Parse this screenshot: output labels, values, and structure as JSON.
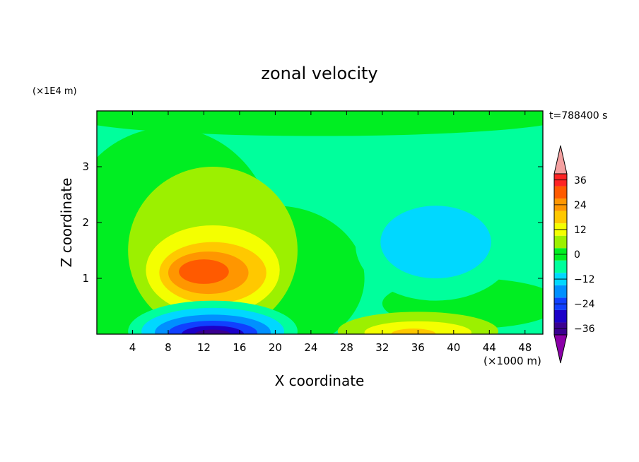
{
  "chart_data": {
    "type": "heatmap",
    "title": "zonal velocity",
    "xlabel": "X coordinate",
    "ylabel": "Z coordinate",
    "x_unit_note": "(×1000 m)",
    "y_unit_note": "(×1E4 m)",
    "time_label": "t=788400 s",
    "xlim": [
      0,
      50
    ],
    "ylim": [
      0,
      4
    ],
    "x_ticks": [
      4,
      8,
      12,
      16,
      20,
      24,
      28,
      32,
      36,
      40,
      44,
      48
    ],
    "y_ticks": [
      1,
      2,
      3
    ],
    "colorbar": {
      "levels": [
        -42,
        -36,
        -30,
        -24,
        -18,
        -12,
        -6,
        0,
        6,
        12,
        18,
        24,
        30,
        36,
        42
      ],
      "tick_labels": [
        "36",
        "24",
        "12",
        "0",
        "-12",
        "-24",
        "-36"
      ],
      "tick_values": [
        36,
        24,
        12,
        0,
        -12,
        -24,
        -36
      ],
      "colors": [
        "#8b00a8",
        "#3a0090",
        "#1c00c8",
        "#1040ff",
        "#0090ff",
        "#00d8ff",
        "#00ff9c",
        "#00ee22",
        "#9cf000",
        "#f4ff00",
        "#ffc800",
        "#ff9600",
        "#ff5a00",
        "#ff2424",
        "#f4a0a0"
      ]
    },
    "features": [
      {
        "name": "positive jet core",
        "x": 12,
        "z": 1.1,
        "peak": 26
      },
      {
        "name": "negative surface core",
        "x": 13,
        "z": 0.1,
        "peak": -38
      },
      {
        "name": "weak negative region",
        "x": 37,
        "z": 1.6,
        "peak": -10
      },
      {
        "name": "surface positive",
        "x": 35,
        "z": 0.1,
        "peak": 22
      }
    ]
  }
}
